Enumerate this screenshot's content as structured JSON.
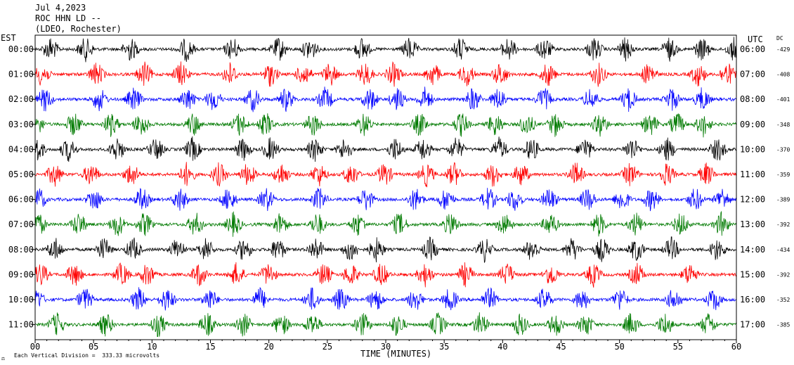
{
  "header": {
    "date": "Jul 4,2023",
    "station": "ROC HHN LD --",
    "network": "(LDEO, Rochester)"
  },
  "left_axis_label": "EST",
  "right_axis_label": "UTC",
  "dc_label": "DC",
  "footer_note": "Each Vertical Division =  333.33 microvolts",
  "footer_corner": "⚖",
  "chart_data": {
    "type": "line",
    "xlabel": "TIME (MINUTES)",
    "xlim": [
      0,
      60
    ],
    "x_ticks": [
      "00",
      "05",
      "10",
      "15",
      "20",
      "25",
      "30",
      "35",
      "40",
      "45",
      "50",
      "55",
      "60"
    ],
    "rows": [
      {
        "est": "00:00",
        "utc": "06:00",
        "dc": "-429",
        "color": "#000000"
      },
      {
        "est": "01:00",
        "utc": "07:00",
        "dc": "-408",
        "color": "#ff0000"
      },
      {
        "est": "02:00",
        "utc": "08:00",
        "dc": "-401",
        "color": "#0000ff"
      },
      {
        "est": "03:00",
        "utc": "09:00",
        "dc": "-348",
        "color": "#007a00"
      },
      {
        "est": "04:00",
        "utc": "10:00",
        "dc": "-370",
        "color": "#000000"
      },
      {
        "est": "05:00",
        "utc": "11:00",
        "dc": "-359",
        "color": "#ff0000"
      },
      {
        "est": "06:00",
        "utc": "12:00",
        "dc": "-389",
        "color": "#0000ff"
      },
      {
        "est": "07:00",
        "utc": "13:00",
        "dc": "-392",
        "color": "#007a00"
      },
      {
        "est": "08:00",
        "utc": "14:00",
        "dc": "-434",
        "color": "#000000"
      },
      {
        "est": "09:00",
        "utc": "15:00",
        "dc": "-392",
        "color": "#ff0000"
      },
      {
        "est": "10:00",
        "utc": "16:00",
        "dc": "-352",
        "color": "#0000ff"
      },
      {
        "est": "11:00",
        "utc": "17:00",
        "dc": "-385",
        "color": "#007a00"
      }
    ]
  }
}
